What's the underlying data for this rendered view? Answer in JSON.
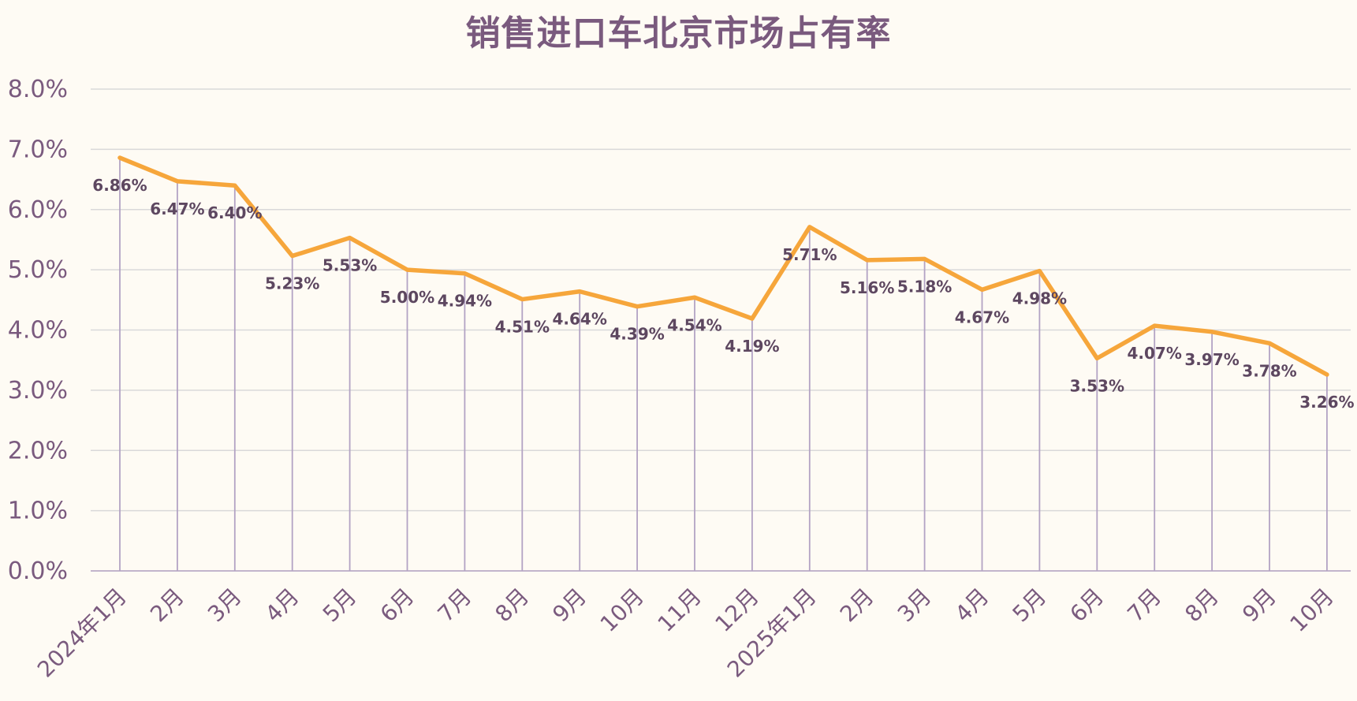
{
  "chart_data": {
    "type": "line",
    "title": "销售进口车北京市场占有率",
    "xlabel": "",
    "ylabel": "",
    "ylim": [
      0,
      0.08
    ],
    "yticks": [
      "0.0%",
      "1.0%",
      "2.0%",
      "3.0%",
      "4.0%",
      "5.0%",
      "6.0%",
      "7.0%",
      "8.0%"
    ],
    "grid": true,
    "legend": "none",
    "drop_lines": true,
    "categories": [
      "2024年1月",
      "2月",
      "3月",
      "4月",
      "5月",
      "6月",
      "7月",
      "8月",
      "9月",
      "10月",
      "11月",
      "12月",
      "2025年1月",
      "2月",
      "3月",
      "4月",
      "5月",
      "6月",
      "7月",
      "8月",
      "9月",
      "10月"
    ],
    "series": [
      {
        "values": [
          0.0686,
          0.0647,
          0.064,
          0.0523,
          0.0553,
          0.05,
          0.0494,
          0.0451,
          0.0464,
          0.0439,
          0.0454,
          0.0419,
          0.0571,
          0.0516,
          0.0518,
          0.0467,
          0.0498,
          0.0353,
          0.0407,
          0.0397,
          0.0378,
          0.0326
        ],
        "labels": [
          "6.86%",
          "6.47%",
          "6.40%",
          "5.23%",
          "5.53%",
          "5.00%",
          "4.94%",
          "4.51%",
          "4.64%",
          "4.39%",
          "4.54%",
          "4.19%",
          "5.71%",
          "5.16%",
          "5.18%",
          "4.67%",
          "4.98%",
          "3.53%",
          "4.07%",
          "3.97%",
          "3.78%",
          "3.26%"
        ]
      }
    ],
    "colors": {
      "line": "#f6a63b",
      "drop_line": "#b3a3c4",
      "grid": "#d9d9d9",
      "text": "#7a5a7e",
      "label": "#5d4760"
    }
  }
}
